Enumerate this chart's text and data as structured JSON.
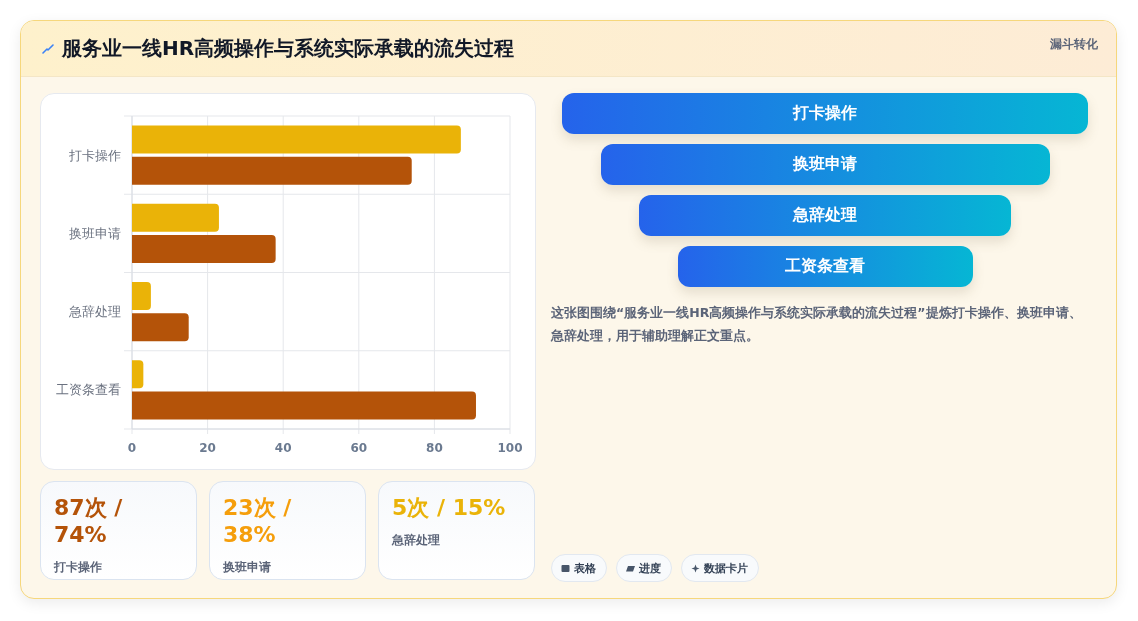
{
  "chart_data": [
    {
      "type": "bar",
      "title": "服务业一线HR高频操作与系统实际承载的流失过程",
      "annotations": [
        "漏斗转化"
      ],
      "orientation": "horizontal",
      "categories": [
        "打卡操作",
        "换班申请",
        "急辞处理",
        "工资条查看"
      ],
      "series": [
        {
          "color": "#eab308",
          "values": [
            87,
            23,
            5,
            3
          ]
        },
        {
          "color": "#b45309",
          "values": [
            74,
            38,
            15,
            91
          ]
        }
      ],
      "xlim": [
        0,
        100
      ],
      "xticks": [
        0,
        20,
        40,
        60,
        80,
        100
      ],
      "grid": true
    },
    {
      "type": "other",
      "categories": [
        "打卡操作",
        "换班申请",
        "急辞处理",
        "工资条查看"
      ],
      "annotations": [
        "这张图围绕“服务业一线HR高频操作与系统实际承载的流失过程”提炼打卡操作、换班申请、急辞处理，用于辅助理解正文重点。",
        "表格",
        "进度",
        "数据卡片"
      ]
    },
    {
      "type": "other",
      "categories": [
        "打卡操作",
        "换班申请",
        "急辞处理"
      ],
      "annotations": [
        "87次 / 74%",
        "23次 / 38%",
        "5次 / 15%"
      ]
    }
  ]
}
